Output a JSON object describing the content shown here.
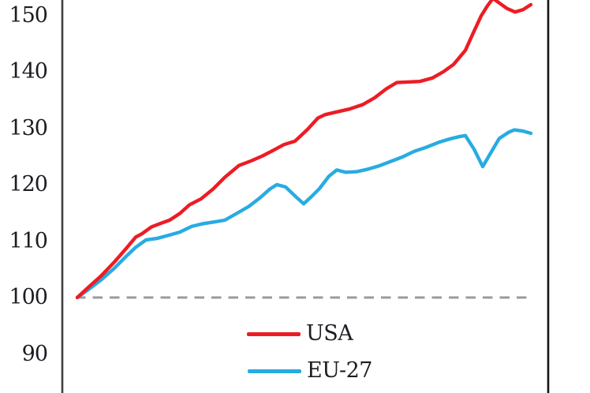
{
  "chart_data": {
    "type": "line",
    "title": "",
    "y_axis": {
      "ticks": [
        150,
        140,
        130,
        120,
        110,
        100,
        90
      ],
      "visible_range": [
        87,
        153
      ]
    },
    "baseline": {
      "value": 100,
      "style": "dashed",
      "color": "#9b9b9b"
    },
    "axis_color_left": "#3f3f3f",
    "axis_color_right": "#141414",
    "text_color": "#1c1c22",
    "legend": {
      "position": "bottom-center",
      "entries": [
        "USA",
        "EU-27"
      ]
    },
    "series": [
      {
        "name": "USA",
        "color": "#ed1c24",
        "points": [
          [
            98,
            100
          ],
          [
            112,
            101.8
          ],
          [
            128,
            103.8
          ],
          [
            145,
            106.3
          ],
          [
            160,
            108.7
          ],
          [
            172,
            110.7
          ],
          [
            180,
            111.3
          ],
          [
            192,
            112.5
          ],
          [
            205,
            113.2
          ],
          [
            215,
            113.7
          ],
          [
            228,
            114.9
          ],
          [
            240,
            116.4
          ],
          [
            255,
            117.5
          ],
          [
            270,
            119.2
          ],
          [
            285,
            121.3
          ],
          [
            303,
            123.4
          ],
          [
            318,
            124.2
          ],
          [
            333,
            125.1
          ],
          [
            348,
            126.2
          ],
          [
            360,
            127.1
          ],
          [
            374,
            127.7
          ],
          [
            390,
            129.8
          ],
          [
            403,
            131.8
          ],
          [
            412,
            132.4
          ],
          [
            427,
            132.9
          ],
          [
            443,
            133.4
          ],
          [
            460,
            134.2
          ],
          [
            475,
            135.4
          ],
          [
            490,
            137.0
          ],
          [
            503,
            138.1
          ],
          [
            517,
            138.2
          ],
          [
            532,
            138.3
          ],
          [
            548,
            138.9
          ],
          [
            562,
            140.0
          ],
          [
            575,
            141.3
          ],
          [
            590,
            143.8
          ],
          [
            600,
            146.9
          ],
          [
            610,
            149.9
          ],
          [
            618,
            151.7
          ],
          [
            625,
            153.0
          ],
          [
            634,
            152.1
          ],
          [
            643,
            151.2
          ],
          [
            653,
            150.6
          ],
          [
            663,
            151.0
          ],
          [
            673,
            151.9
          ]
        ]
      },
      {
        "name": "EU-27",
        "color": "#29abe2",
        "points": [
          [
            98,
            100
          ],
          [
            112,
            101.4
          ],
          [
            128,
            103.1
          ],
          [
            145,
            105.2
          ],
          [
            160,
            107.3
          ],
          [
            172,
            108.9
          ],
          [
            185,
            110.2
          ],
          [
            200,
            110.5
          ],
          [
            213,
            111.0
          ],
          [
            228,
            111.6
          ],
          [
            243,
            112.6
          ],
          [
            258,
            113.1
          ],
          [
            272,
            113.4
          ],
          [
            285,
            113.7
          ],
          [
            300,
            114.9
          ],
          [
            315,
            116.1
          ],
          [
            330,
            117.7
          ],
          [
            342,
            119.2
          ],
          [
            351,
            120.0
          ],
          [
            362,
            119.6
          ],
          [
            374,
            118.0
          ],
          [
            385,
            116.6
          ],
          [
            395,
            117.9
          ],
          [
            405,
            119.3
          ],
          [
            417,
            121.5
          ],
          [
            427,
            122.6
          ],
          [
            438,
            122.2
          ],
          [
            452,
            122.3
          ],
          [
            465,
            122.7
          ],
          [
            480,
            123.3
          ],
          [
            495,
            124.1
          ],
          [
            510,
            124.9
          ],
          [
            525,
            125.9
          ],
          [
            540,
            126.6
          ],
          [
            556,
            127.5
          ],
          [
            570,
            128.1
          ],
          [
            582,
            128.5
          ],
          [
            590,
            128.7
          ],
          [
            601,
            126.3
          ],
          [
            612,
            123.2
          ],
          [
            622,
            125.6
          ],
          [
            633,
            128.2
          ],
          [
            645,
            129.3
          ],
          [
            652,
            129.7
          ],
          [
            663,
            129.5
          ],
          [
            673,
            129.1
          ]
        ]
      }
    ]
  }
}
